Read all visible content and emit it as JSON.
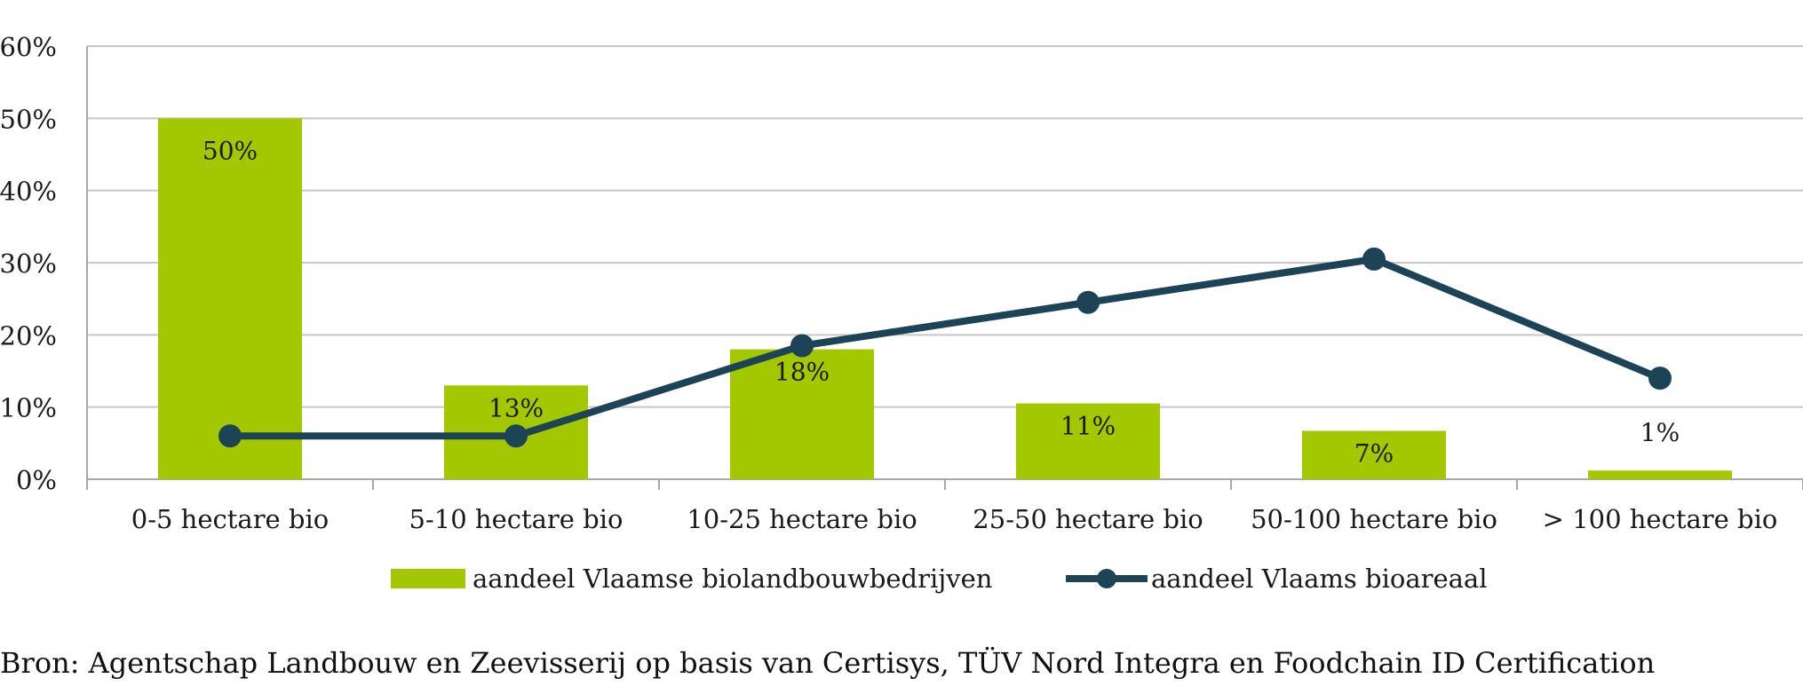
{
  "chart_data": {
    "type": "bar",
    "categories": [
      "0-5 hectare bio",
      "5-10 hectare bio",
      "10-25 hectare bio",
      "25-50 hectare bio",
      "50-100 hectare bio",
      "> 100 hectare bio"
    ],
    "series": [
      {
        "name": "aandeel Vlaamse biolandbouwbedrijven",
        "type": "bar",
        "values": [
          50,
          13,
          18,
          10.5,
          6.7,
          1.2
        ],
        "data_labels": [
          "50%",
          "13%",
          "18%",
          "11%",
          "7%",
          "1%"
        ],
        "color": "#a3c800"
      },
      {
        "name": "aandeel Vlaams bioareaal",
        "type": "line",
        "values": [
          6,
          6,
          18.5,
          24.5,
          30.5,
          14
        ],
        "color": "#1c4456"
      }
    ],
    "ylim": [
      0,
      60
    ],
    "yticks": [
      0,
      10,
      20,
      30,
      40,
      50,
      60
    ],
    "ytick_labels": [
      "0%",
      "10%",
      "20%",
      "30%",
      "40%",
      "50%",
      "60%"
    ],
    "grid": true,
    "legend_position": "bottom"
  },
  "source_text": "Bron: Agentschap Landbouw en Zeevisserij op basis van Certisys, TÜV Nord Integra en Foodchain ID Certification"
}
